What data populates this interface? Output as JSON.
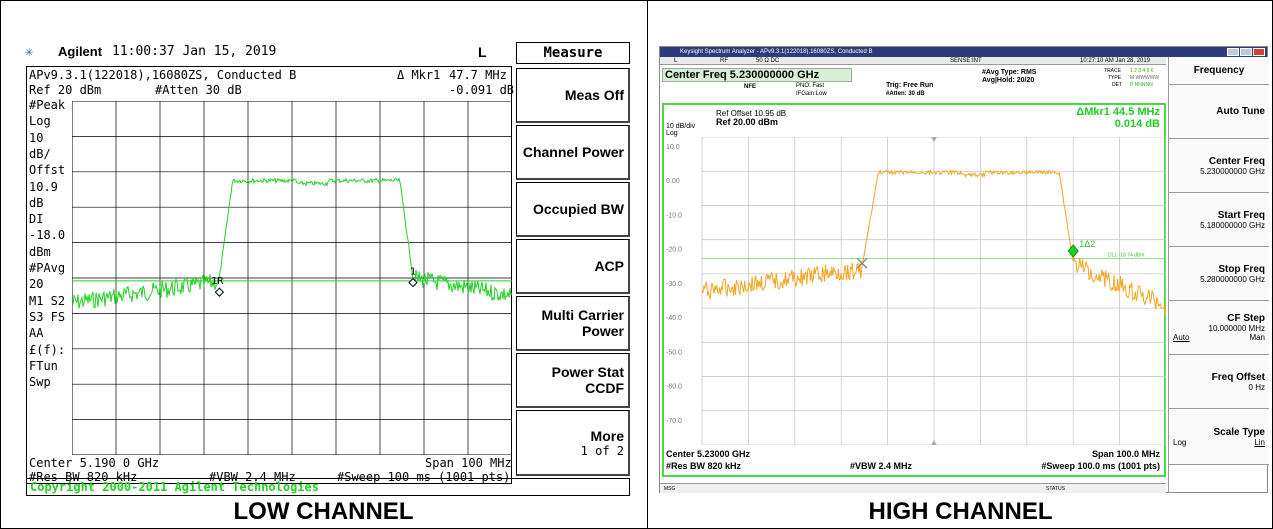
{
  "captions": {
    "left": "LOW CHANNEL",
    "right": "HIGH CHANNEL"
  },
  "agilent": {
    "brand": "Agilent",
    "timestamp": "11:00:37  Jan 15, 2019",
    "indicator": "L",
    "title_line": "APv9.3.1(122018),16080ZS, Conducted B",
    "marker_label": "Δ Mkr1",
    "marker_freq": "47.7 MHz",
    "ref_line": "Ref 20 dBm",
    "atten": "#Atten 30 dB",
    "marker_delta": "-0.091 dB",
    "sidebar": [
      "#Peak",
      "Log",
      "10",
      "dB/",
      "Offst",
      "10.9",
      "dB",
      "DI",
      "-18.0",
      "dBm",
      "#PAvg",
      "20",
      "M1  S2",
      "S3  FS",
      "     AA",
      "£(f):",
      "FTun",
      "Swp"
    ],
    "center": "Center 5.190 0 GHz",
    "span": "Span 100 MHz",
    "res_bw": "#Res BW 820 kHz",
    "vbw": "#VBW 2.4 MHz",
    "sweep": "#Sweep 100 ms (1001 pts)",
    "marker1_text": "1R",
    "marker2_text": "1",
    "copyright": "Copyright 2000-2011 Agilent Technologies",
    "menu_title": "Measure",
    "menu": [
      {
        "label": "Meas Off"
      },
      {
        "label": "Channel Power"
      },
      {
        "label": "Occupied BW"
      },
      {
        "label": "ACP"
      },
      {
        "label": "Multi Carrier",
        "label2": "Power"
      },
      {
        "label": "Power Stat",
        "label2": "CCDF"
      },
      {
        "label": "More",
        "label2": "1 of 2"
      }
    ],
    "trace_color": "#22d222"
  },
  "keysight": {
    "window_title": "Keysight Spectrum Analyzer - APv9.3.1(122018),16080ZS, Conducted B",
    "status": {
      "l": "L",
      "rf": "RF",
      "ohm": "50 Ω  DC",
      "sense": "SENSE:INT",
      "clock": "10:27:10 AM Jan 28, 2019"
    },
    "center_freq": "Center Freq 5.230000000 GHz",
    "nfe": "NFE",
    "pno": "PNO: Fast",
    "ifgain": "IFGain:Low",
    "trig": "Trig: Free Run",
    "atten": "#Atten: 30 dB",
    "avg_type": "#Avg Type: RMS",
    "avg_hold": "Avg|Hold: 20/20",
    "trace_row": "TRACE",
    "trace_nums": "1 2 3 4 5 6",
    "type_row": "TYPE",
    "type_val": "M WWWWW",
    "det_row": "DET",
    "det_val": "P NNNNN",
    "ref_offset": "Ref Offset 10.95 dB",
    "ref_level": "Ref 20.00 dBm",
    "scale": "10 dB/div",
    "log": "Log",
    "mkr_label": "ΔMkr1 44.5 MHz",
    "mkr_value": "0.014 dB",
    "y_ticks": [
      "10.0",
      "0.00",
      "-10.0",
      "-20.0",
      "-30.0",
      "-40.0",
      "-50.0",
      "-60.0",
      "-70.0"
    ],
    "dl_label": "DL1 -18.74 dBm",
    "marker_text": "1Δ2",
    "center": "Center 5.23000 GHz",
    "span": "Span 100.0 MHz",
    "res_bw": "#Res BW 820 kHz",
    "vbw": "#VBW 2.4 MHz",
    "sweep": "#Sweep  100.0 ms (1001 pts)",
    "msg": "MSG",
    "status_bar": "STATUS",
    "menu_title": "Frequency",
    "softkeys": [
      {
        "label": "Auto Tune",
        "sub": ""
      },
      {
        "label": "Center Freq",
        "sub": "5.230000000 GHz"
      },
      {
        "label": "Start Freq",
        "sub": "5.180000000 GHz"
      },
      {
        "label": "Stop Freq",
        "sub": "5.280000000 GHz"
      },
      {
        "label": "CF Step",
        "sub": "10.000000 MHz",
        "auto": "Auto",
        "man": "Man"
      },
      {
        "label": "Freq Offset",
        "sub": "0 Hz"
      },
      {
        "label": "Scale Type",
        "sub": "",
        "log": "Log",
        "lin": "Lin"
      }
    ],
    "trace_color": "#f5a623"
  }
}
